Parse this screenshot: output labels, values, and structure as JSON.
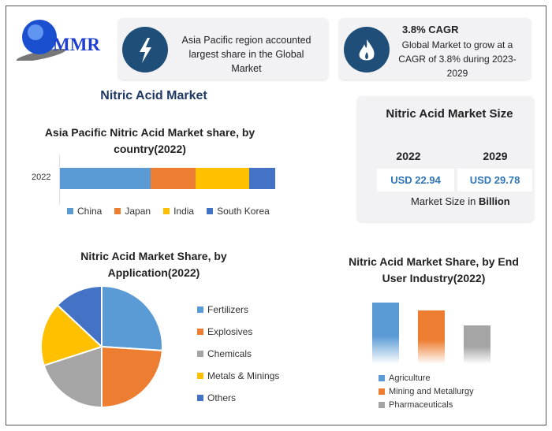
{
  "logo": {
    "text": "MMR"
  },
  "cards": [
    {
      "icon": "lightning-icon",
      "text": "Asia Pacific region accounted largest share in the Global Market"
    },
    {
      "icon": "flame-icon",
      "title": "3.8% CAGR",
      "text": "Global Market to grow at a CAGR of 3.8% during 2023-2029"
    }
  ],
  "main_title": "Nitric Acid Market",
  "market_size": {
    "title": "Nitric Acid Market Size",
    "years": [
      "2022",
      "2029"
    ],
    "values": [
      "USD 22.94",
      "USD 29.78"
    ],
    "unit_prefix": "Market Size in ",
    "unit_bold": "Billion"
  },
  "colors": {
    "blue": "#5b9bd5",
    "orange": "#ed7d31",
    "gray": "#a5a5a5",
    "yellow": "#ffc000",
    "darkblue": "#4472c4",
    "navy": "#1f4e79"
  },
  "chart_data": [
    {
      "type": "bar",
      "stacked": true,
      "orientation": "horizontal",
      "title": "Asia Pacific Nitric Acid Market share, by country(2022)",
      "categories": [
        "2022"
      ],
      "series": [
        {
          "name": "China",
          "values": [
            42
          ]
        },
        {
          "name": "Japan",
          "values": [
            21
          ]
        },
        {
          "name": "India",
          "values": [
            25
          ]
        },
        {
          "name": "South Korea",
          "values": [
            12
          ]
        }
      ],
      "legend": "bottom"
    },
    {
      "type": "pie",
      "title": "Nitric Acid Market Share, by Application(2022)",
      "labels": [
        "Fertilizers",
        "Explosives",
        "Chemicals",
        "Metals & Minings",
        "Others"
      ],
      "values": [
        26,
        24,
        20,
        17,
        13
      ],
      "legend": "right"
    },
    {
      "type": "bar",
      "title": "Nitric Acid Market Share, by End User Industry(2022)",
      "categories": [
        "Agriculture",
        "Mining and Metallurgy",
        "Pharmaceuticals"
      ],
      "values": [
        40,
        35,
        25
      ],
      "legend": "bottom"
    }
  ]
}
